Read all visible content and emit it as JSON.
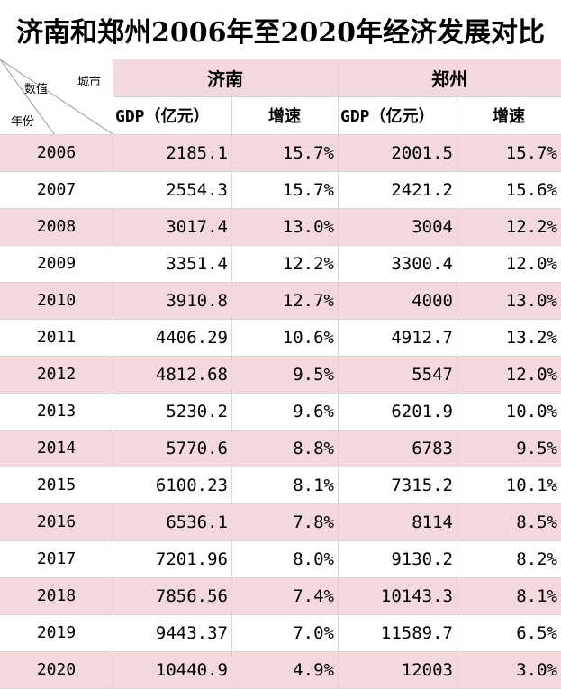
{
  "title": "济南和郑州2006年至2020年经济发展对比",
  "corner": {
    "top": "城市",
    "middle": "数值",
    "bottom": "年份"
  },
  "cities": [
    "济南",
    "郑州"
  ],
  "subheaders": [
    "GDP（亿元）",
    "增速",
    "GDP（亿元）",
    "增速"
  ],
  "rows": [
    {
      "year": "2006",
      "jn_gdp": "2185.1",
      "jn_rate": "15.7%",
      "zz_gdp": "2001.5",
      "zz_rate": "15.7%"
    },
    {
      "year": "2007",
      "jn_gdp": "2554.3",
      "jn_rate": "15.7%",
      "zz_gdp": "2421.2",
      "zz_rate": "15.6%"
    },
    {
      "year": "2008",
      "jn_gdp": "3017.4",
      "jn_rate": "13.0%",
      "zz_gdp": "3004",
      "zz_rate": "12.2%"
    },
    {
      "year": "2009",
      "jn_gdp": "3351.4",
      "jn_rate": "12.2%",
      "zz_gdp": "3300.4",
      "zz_rate": "12.0%"
    },
    {
      "year": "2010",
      "jn_gdp": "3910.8",
      "jn_rate": "12.7%",
      "zz_gdp": "4000",
      "zz_rate": "13.0%"
    },
    {
      "year": "2011",
      "jn_gdp": "4406.29",
      "jn_rate": "10.6%",
      "zz_gdp": "4912.7",
      "zz_rate": "13.2%"
    },
    {
      "year": "2012",
      "jn_gdp": "4812.68",
      "jn_rate": "9.5%",
      "zz_gdp": "5547",
      "zz_rate": "12.0%"
    },
    {
      "year": "2013",
      "jn_gdp": "5230.2",
      "jn_rate": "9.6%",
      "zz_gdp": "6201.9",
      "zz_rate": "10.0%"
    },
    {
      "year": "2014",
      "jn_gdp": "5770.6",
      "jn_rate": "8.8%",
      "zz_gdp": "6783",
      "zz_rate": "9.5%"
    },
    {
      "year": "2015",
      "jn_gdp": "6100.23",
      "jn_rate": "8.1%",
      "zz_gdp": "7315.2",
      "zz_rate": "10.1%"
    },
    {
      "year": "2016",
      "jn_gdp": "6536.1",
      "jn_rate": "7.8%",
      "zz_gdp": "8114",
      "zz_rate": "8.5%"
    },
    {
      "year": "2017",
      "jn_gdp": "7201.96",
      "jn_rate": "8.0%",
      "zz_gdp": "9130.2",
      "zz_rate": "8.2%"
    },
    {
      "year": "2018",
      "jn_gdp": "7856.56",
      "jn_rate": "7.4%",
      "zz_gdp": "10143.3",
      "zz_rate": "8.1%"
    },
    {
      "year": "2019",
      "jn_gdp": "9443.37",
      "jn_rate": "7.0%",
      "zz_gdp": "11589.7",
      "zz_rate": "6.5%"
    },
    {
      "year": "2020",
      "jn_gdp": "10440.9",
      "jn_rate": "4.9%",
      "zz_gdp": "12003",
      "zz_rate": "3.0%"
    }
  ],
  "colors": {
    "stripe": "#f3d9dc",
    "header": "#f3d9dc",
    "grid": "#d6d6d6"
  }
}
